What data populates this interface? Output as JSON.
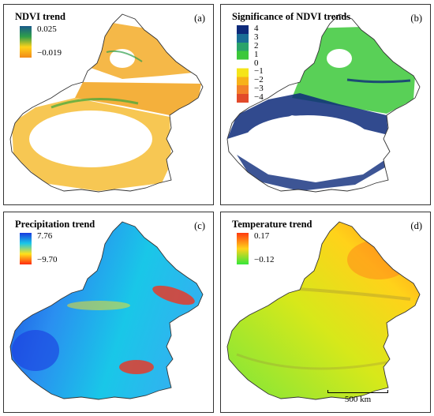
{
  "panels": [
    {
      "id": "a",
      "title": "NDVI trend",
      "label": "(a)",
      "legend": {
        "type": "gradient",
        "max": "0.025",
        "min": "−0.019",
        "colors": [
          "#1a5a8a",
          "#2e9e4a",
          "#ffd21a",
          "#f28a1a"
        ]
      }
    },
    {
      "id": "b",
      "title": "Significance of NDVI trends",
      "label": "(b)",
      "legend": {
        "type": "categorical",
        "items": [
          {
            "label": "4",
            "color": "#0d2a7a"
          },
          {
            "label": "3",
            "color": "#1a6e96"
          },
          {
            "label": "2",
            "color": "#2aa36a"
          },
          {
            "label": "1",
            "color": "#3cc83a"
          },
          {
            "label": "0",
            "color": "#ffffff"
          },
          {
            "label": "−1",
            "color": "#f5e51a"
          },
          {
            "label": "−2",
            "color": "#f7b21a"
          },
          {
            "label": "−3",
            "color": "#f2802a"
          },
          {
            "label": "−4",
            "color": "#e24a2a"
          }
        ]
      }
    },
    {
      "id": "c",
      "title": "Precipitation trend",
      "label": "(c)",
      "legend": {
        "type": "gradient",
        "max": "7.76",
        "min": "−9.70",
        "colors": [
          "#1a3adf",
          "#19c7e8",
          "#ffe11a",
          "#ff2a10"
        ]
      }
    },
    {
      "id": "d",
      "title": "Temperature trend",
      "label": "(d)",
      "legend": {
        "type": "gradient",
        "max": "0.17",
        "min": "−0.12",
        "colors": [
          "#ff3a10",
          "#ffd21a",
          "#35e63a"
        ]
      }
    }
  ],
  "scale_bar": {
    "label": "500 km"
  }
}
